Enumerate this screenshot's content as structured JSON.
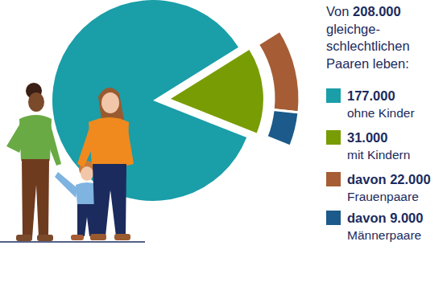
{
  "chart_data": {
    "type": "pie",
    "title_lines": [
      "Von 208.000",
      "gleichge-",
      "schlechtlichen",
      "Paaren leben:"
    ],
    "categories": [
      "ohne Kinder",
      "mit Kindern"
    ],
    "values": [
      177000,
      31000
    ],
    "value_labels": [
      "177.000",
      "31.000"
    ],
    "colors": [
      "#1a9ea8",
      "#789c04"
    ],
    "breakdown": {
      "categories": [
        "Frauenpaare",
        "Männerpaare"
      ],
      "values": [
        22000,
        9000
      ],
      "value_labels": [
        "davon 22.000",
        "davon 9.000"
      ],
      "colors": [
        "#a65d35",
        "#1b5a8a"
      ]
    }
  }
}
